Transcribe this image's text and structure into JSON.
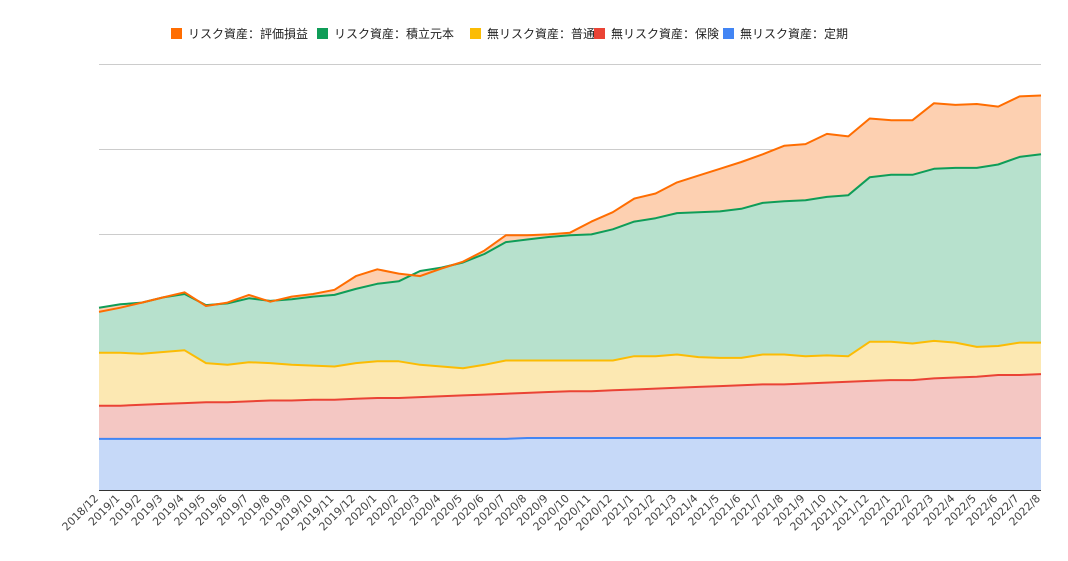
{
  "chart_data": {
    "type": "area",
    "stacked": true,
    "grid": true,
    "legend_position": "top",
    "ylim": [
      0,
      500
    ],
    "categories": [
      "2018/12",
      "2019/1",
      "2019/2",
      "2019/3",
      "2019/4",
      "2019/5",
      "2019/6",
      "2019/7",
      "2019/8",
      "2019/9",
      "2019/10",
      "2019/11",
      "2019/12",
      "2020/1",
      "2020/2",
      "2020/3",
      "2020/4",
      "2020/5",
      "2020/6",
      "2020/7",
      "2020/8",
      "2020/9",
      "2020/10",
      "2020/11",
      "2020/12",
      "2021/1",
      "2021/2",
      "2021/3",
      "2021/4",
      "2021/5",
      "2021/6",
      "2021/7",
      "2021/8",
      "2021/9",
      "2021/10",
      "2021/11",
      "2021/12",
      "2022/1",
      "2022/2",
      "2022/3",
      "2022/4",
      "2022/5",
      "2022/6",
      "2022/7",
      "2022/8"
    ],
    "series": [
      {
        "name": "無リスク資産：定期",
        "color": "#4285f4",
        "fill": "#c6d9f8",
        "values": [
          60,
          60,
          60,
          60,
          60,
          60,
          60,
          60,
          60,
          60,
          60,
          60,
          60,
          60,
          60,
          60,
          60,
          60,
          60,
          60,
          61,
          61,
          61,
          61,
          61,
          61,
          61,
          61,
          61,
          61,
          61,
          61,
          61,
          61,
          61,
          61,
          61,
          61,
          61,
          61,
          61,
          61,
          61,
          61,
          61
        ]
      },
      {
        "name": "無リスク資産：保険",
        "color": "#ea4335",
        "fill": "#f4c7c3",
        "values": [
          39,
          39,
          40,
          41,
          42,
          43,
          43,
          44,
          45,
          45,
          46,
          46,
          47,
          48,
          48,
          49,
          50,
          51,
          52,
          53,
          53,
          54,
          55,
          55,
          56,
          57,
          58,
          59,
          60,
          61,
          62,
          63,
          63,
          64,
          65,
          66,
          67,
          68,
          68,
          70,
          71,
          72,
          74,
          74,
          75
        ]
      },
      {
        "name": "無リスク資産：普通",
        "color": "#fbbc04",
        "fill": "#fce8b2",
        "values": [
          62,
          62,
          60,
          61,
          62,
          46,
          44,
          46,
          44,
          42,
          40,
          39,
          42,
          43,
          43,
          38,
          35,
          32,
          35,
          39,
          38,
          37,
          36,
          36,
          35,
          39,
          38,
          39,
          35,
          33,
          32,
          35,
          35,
          32,
          32,
          30,
          46,
          45,
          43,
          44,
          41,
          35,
          34,
          38,
          37
        ]
      },
      {
        "name": "リスク資産：積立元本",
        "color": "#0f9d58",
        "fill": "#b7e1cd",
        "values": [
          53,
          57,
          60,
          64,
          66,
          68,
          72,
          75,
          73,
          77,
          81,
          84,
          87,
          91,
          94,
          110,
          116,
          124,
          130,
          139,
          142,
          145,
          147,
          148,
          154,
          158,
          162,
          166,
          170,
          172,
          175,
          178,
          180,
          183,
          186,
          189,
          193,
          196,
          198,
          202,
          205,
          210,
          213,
          218,
          221
        ]
      },
      {
        "name": "リスク資産：評価損益",
        "color": "#ff6d01",
        "fill": "#fdd0b1",
        "values": [
          -5,
          -4,
          0,
          0,
          2,
          -1,
          1,
          4,
          -1,
          3,
          3,
          6,
          15,
          17,
          9,
          -6,
          -1,
          1,
          4,
          8,
          5,
          3,
          3,
          15,
          20,
          27,
          29,
          36,
          43,
          50,
          55,
          57,
          65,
          66,
          74,
          69,
          69,
          64,
          64,
          77,
          74,
          75,
          68,
          71,
          69
        ]
      }
    ]
  }
}
